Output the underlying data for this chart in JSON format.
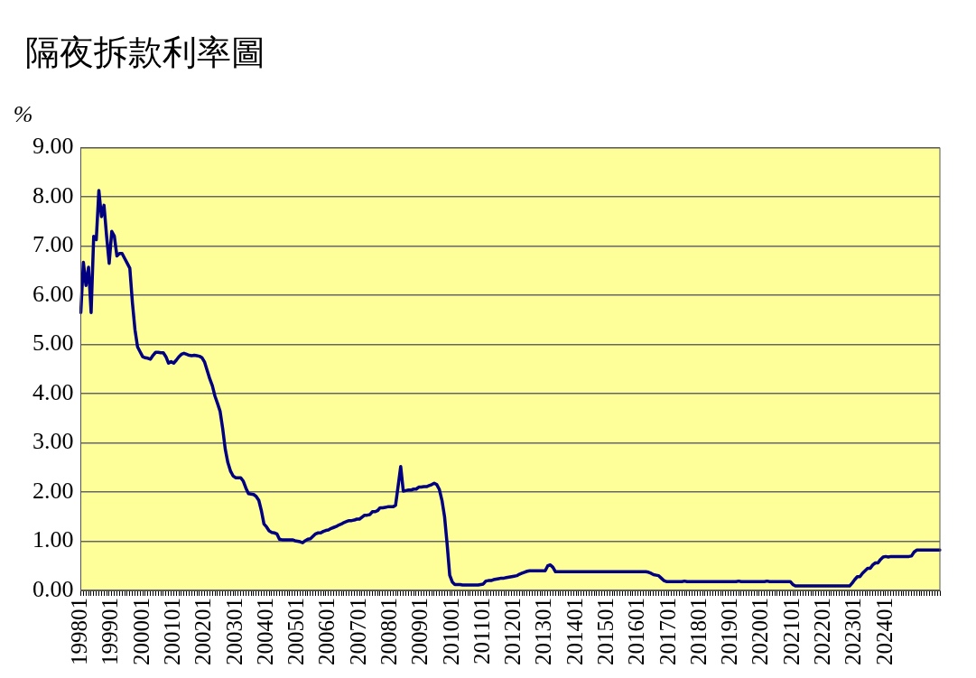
{
  "chart_data": {
    "type": "line",
    "title": "隔夜拆款利率圖",
    "ylabel": "%",
    "categories": [
      "199801",
      null,
      null,
      null,
      null,
      null,
      null,
      null,
      null,
      null,
      null,
      null,
      "199901",
      null,
      null,
      null,
      null,
      null,
      null,
      null,
      null,
      null,
      null,
      null,
      "200001",
      null,
      null,
      null,
      null,
      null,
      null,
      null,
      null,
      null,
      null,
      null,
      "200101",
      null,
      null,
      null,
      null,
      null,
      null,
      null,
      null,
      null,
      null,
      null,
      "200201",
      null,
      null,
      null,
      null,
      null,
      null,
      null,
      null,
      null,
      null,
      null,
      "200301",
      null,
      null,
      null,
      null,
      null,
      null,
      null,
      null,
      null,
      null,
      null,
      "200401",
      null,
      null,
      null,
      null,
      null,
      null,
      null,
      null,
      null,
      null,
      null,
      "200501",
      null,
      null,
      null,
      null,
      null,
      null,
      null,
      null,
      null,
      null,
      null,
      "200601",
      null,
      null,
      null,
      null,
      null,
      null,
      null,
      null,
      null,
      null,
      null,
      "200701",
      null,
      null,
      null,
      null,
      null,
      null,
      null,
      null,
      null,
      null,
      null,
      "200801",
      null,
      null,
      null,
      null,
      null,
      null,
      null,
      null,
      null,
      null,
      null,
      "200901",
      null,
      null,
      null,
      null,
      null,
      null,
      null,
      null,
      null,
      null,
      null,
      "201001",
      null,
      null,
      null,
      null,
      null,
      null,
      null,
      null,
      null,
      null,
      null,
      "201101",
      null,
      null,
      null,
      null,
      null,
      null,
      null,
      null,
      null,
      null,
      null,
      "201201",
      null,
      null,
      null,
      null,
      null,
      null,
      null,
      null,
      null,
      null,
      null,
      "201301",
      null,
      null,
      null,
      null,
      null,
      null,
      null,
      null,
      null,
      null,
      null,
      "201401",
      null,
      null,
      null,
      null,
      null,
      null,
      null,
      null,
      null,
      null,
      null,
      "201501",
      null,
      null,
      null,
      null,
      null,
      null,
      null,
      null,
      null,
      null,
      null,
      "201601",
      null,
      null,
      null,
      null,
      null,
      null,
      null,
      null,
      null,
      null,
      null,
      "201701",
      null,
      null,
      null,
      null,
      null,
      null,
      null,
      null,
      null,
      null,
      null,
      "201801",
      null,
      null,
      null,
      null,
      null,
      null,
      null,
      null,
      null,
      null,
      null,
      "201901",
      null,
      null,
      null,
      null,
      null,
      null,
      null,
      null,
      null,
      null,
      null,
      "202001",
      null,
      null,
      null,
      null,
      null,
      null,
      null,
      null,
      null,
      null,
      null,
      "202101",
      null,
      null,
      null,
      null,
      null,
      null,
      null,
      null,
      null,
      null,
      null,
      "202201",
      null,
      null,
      null,
      null,
      null,
      null,
      null,
      null,
      null,
      null,
      null,
      "202301",
      null,
      null,
      null,
      null,
      null,
      null,
      null,
      null,
      null,
      null,
      null,
      "202401",
      null,
      null,
      null,
      null,
      null,
      null,
      null,
      null,
      null,
      null,
      null,
      null,
      null,
      null,
      null,
      null,
      null,
      null,
      null,
      null,
      null
    ],
    "series": [
      {
        "color": "#000080",
        "values": [
          5.65,
          6.67,
          6.2,
          6.57,
          5.65,
          7.2,
          7.13,
          8.13,
          7.6,
          7.83,
          7.2,
          6.65,
          7.3,
          7.2,
          6.8,
          6.85,
          6.85,
          6.75,
          6.65,
          6.55,
          5.85,
          5.3,
          4.95,
          4.85,
          4.75,
          4.73,
          4.72,
          4.7,
          4.78,
          4.84,
          4.84,
          4.83,
          4.83,
          4.75,
          4.62,
          4.65,
          4.62,
          4.68,
          4.75,
          4.8,
          4.82,
          4.8,
          4.78,
          4.77,
          4.78,
          4.77,
          4.76,
          4.73,
          4.64,
          4.47,
          4.3,
          4.16,
          3.95,
          3.8,
          3.64,
          3.29,
          2.87,
          2.6,
          2.43,
          2.33,
          2.29,
          2.29,
          2.29,
          2.22,
          2.08,
          1.97,
          1.96,
          1.95,
          1.91,
          1.83,
          1.62,
          1.35,
          1.29,
          1.21,
          1.18,
          1.17,
          1.15,
          1.04,
          1.03,
          1.03,
          1.03,
          1.03,
          1.03,
          1.01,
          1.0,
          0.99,
          0.97,
          1.01,
          1.04,
          1.05,
          1.1,
          1.15,
          1.17,
          1.17,
          1.2,
          1.22,
          1.23,
          1.26,
          1.28,
          1.3,
          1.33,
          1.35,
          1.38,
          1.4,
          1.42,
          1.42,
          1.43,
          1.45,
          1.45,
          1.49,
          1.53,
          1.53,
          1.54,
          1.6,
          1.6,
          1.62,
          1.68,
          1.68,
          1.69,
          1.7,
          1.7,
          1.7,
          1.73,
          2.12,
          2.52,
          2.02,
          2.03,
          2.04,
          2.04,
          2.06,
          2.06,
          2.1,
          2.1,
          2.11,
          2.11,
          2.13,
          2.15,
          2.18,
          2.15,
          2.05,
          1.83,
          1.5,
          0.94,
          0.31,
          0.17,
          0.12,
          0.12,
          0.12,
          0.11,
          0.11,
          0.11,
          0.11,
          0.11,
          0.11,
          0.11,
          0.12,
          0.13,
          0.19,
          0.2,
          0.2,
          0.22,
          0.23,
          0.24,
          0.25,
          0.25,
          0.26,
          0.27,
          0.28,
          0.29,
          0.3,
          0.33,
          0.35,
          0.37,
          0.39,
          0.4,
          0.4,
          0.4,
          0.4,
          0.4,
          0.4,
          0.4,
          0.5,
          0.52,
          0.47,
          0.38,
          0.38,
          0.38,
          0.38,
          0.38,
          0.38,
          0.38,
          0.38,
          0.38,
          0.38,
          0.38,
          0.38,
          0.38,
          0.38,
          0.38,
          0.38,
          0.38,
          0.38,
          0.38,
          0.38,
          0.38,
          0.38,
          0.38,
          0.38,
          0.38,
          0.38,
          0.38,
          0.38,
          0.38,
          0.38,
          0.38,
          0.38,
          0.38,
          0.38,
          0.38,
          0.38,
          0.37,
          0.35,
          0.32,
          0.31,
          0.3,
          0.25,
          0.2,
          0.18,
          0.18,
          0.18,
          0.18,
          0.18,
          0.18,
          0.18,
          0.19,
          0.18,
          0.18,
          0.18,
          0.18,
          0.18,
          0.18,
          0.18,
          0.18,
          0.18,
          0.18,
          0.18,
          0.18,
          0.18,
          0.18,
          0.18,
          0.18,
          0.18,
          0.18,
          0.18,
          0.18,
          0.19,
          0.18,
          0.18,
          0.18,
          0.18,
          0.18,
          0.18,
          0.18,
          0.18,
          0.18,
          0.18,
          0.19,
          0.18,
          0.18,
          0.18,
          0.18,
          0.18,
          0.18,
          0.18,
          0.18,
          0.18,
          0.12,
          0.09,
          0.09,
          0.09,
          0.09,
          0.09,
          0.09,
          0.09,
          0.09,
          0.09,
          0.09,
          0.09,
          0.09,
          0.09,
          0.09,
          0.09,
          0.09,
          0.09,
          0.09,
          0.09,
          0.09,
          0.09,
          0.09,
          0.15,
          0.22,
          0.28,
          0.28,
          0.35,
          0.4,
          0.45,
          0.45,
          0.52,
          0.56,
          0.56,
          0.63,
          0.68,
          0.69,
          0.68,
          0.69,
          0.69,
          0.69,
          0.69,
          0.69,
          0.69,
          0.69,
          0.69,
          0.7,
          0.78,
          0.82,
          0.82,
          0.82,
          0.82,
          0.82,
          0.82,
          0.82,
          0.82,
          0.82,
          0.82
        ]
      }
    ],
    "ylim": [
      0,
      9
    ],
    "yticks": [
      {
        "value": 0,
        "label": "0.00"
      },
      {
        "value": 1,
        "label": "1.00"
      },
      {
        "value": 2,
        "label": "2.00"
      },
      {
        "value": 3,
        "label": "3.00"
      },
      {
        "value": 4,
        "label": "4.00"
      },
      {
        "value": 5,
        "label": "5.00"
      },
      {
        "value": 6,
        "label": "6.00"
      },
      {
        "value": 7,
        "label": "7.00"
      },
      {
        "value": 8,
        "label": "8.00"
      },
      {
        "value": 9,
        "label": "9.00"
      }
    ],
    "grid": "y",
    "legend": false,
    "marker": "none",
    "line_style": "solid"
  }
}
